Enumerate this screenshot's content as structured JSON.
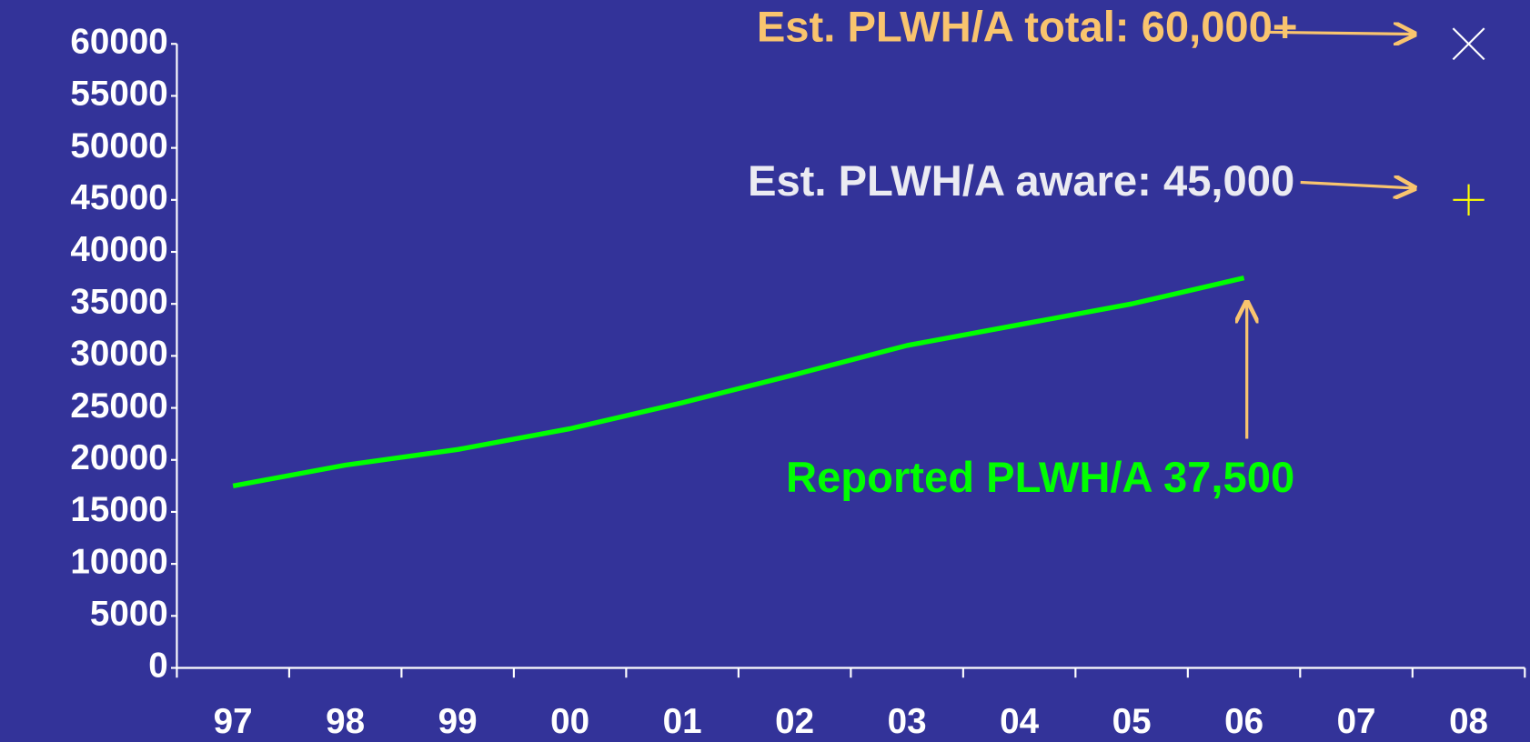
{
  "chart_data": {
    "type": "line",
    "categories": [
      "97",
      "98",
      "99",
      "00",
      "01",
      "02",
      "03",
      "04",
      "05",
      "06",
      "07",
      "08"
    ],
    "series": [
      {
        "color": "#00ff00",
        "values": [
          17500,
          19500,
          21000,
          23000,
          25500,
          28200,
          31000,
          33000,
          35000,
          37500,
          null,
          null
        ]
      },
      {
        "color": "#ffffff",
        "marker": "x",
        "values": [
          null,
          null,
          null,
          null,
          null,
          null,
          null,
          null,
          null,
          null,
          null,
          60000
        ]
      },
      {
        "color": "#ffff00",
        "marker": "+",
        "values": [
          null,
          null,
          null,
          null,
          null,
          null,
          null,
          null,
          null,
          null,
          null,
          45000
        ]
      }
    ],
    "ylim": [
      0,
      60000
    ],
    "yticks": [
      0,
      5000,
      10000,
      15000,
      20000,
      25000,
      30000,
      35000,
      40000,
      45000,
      50000,
      55000,
      60000
    ],
    "grid": false,
    "annotations": [
      {
        "text": "Est. PLWH/A total: 60,000+",
        "color": "#f9c46e"
      },
      {
        "text": "Est. PLWH/A aware: 45,000",
        "color": "#ebebf2"
      },
      {
        "text": "Reported PLWH/A 37,500",
        "color": "#00ff00"
      }
    ]
  }
}
